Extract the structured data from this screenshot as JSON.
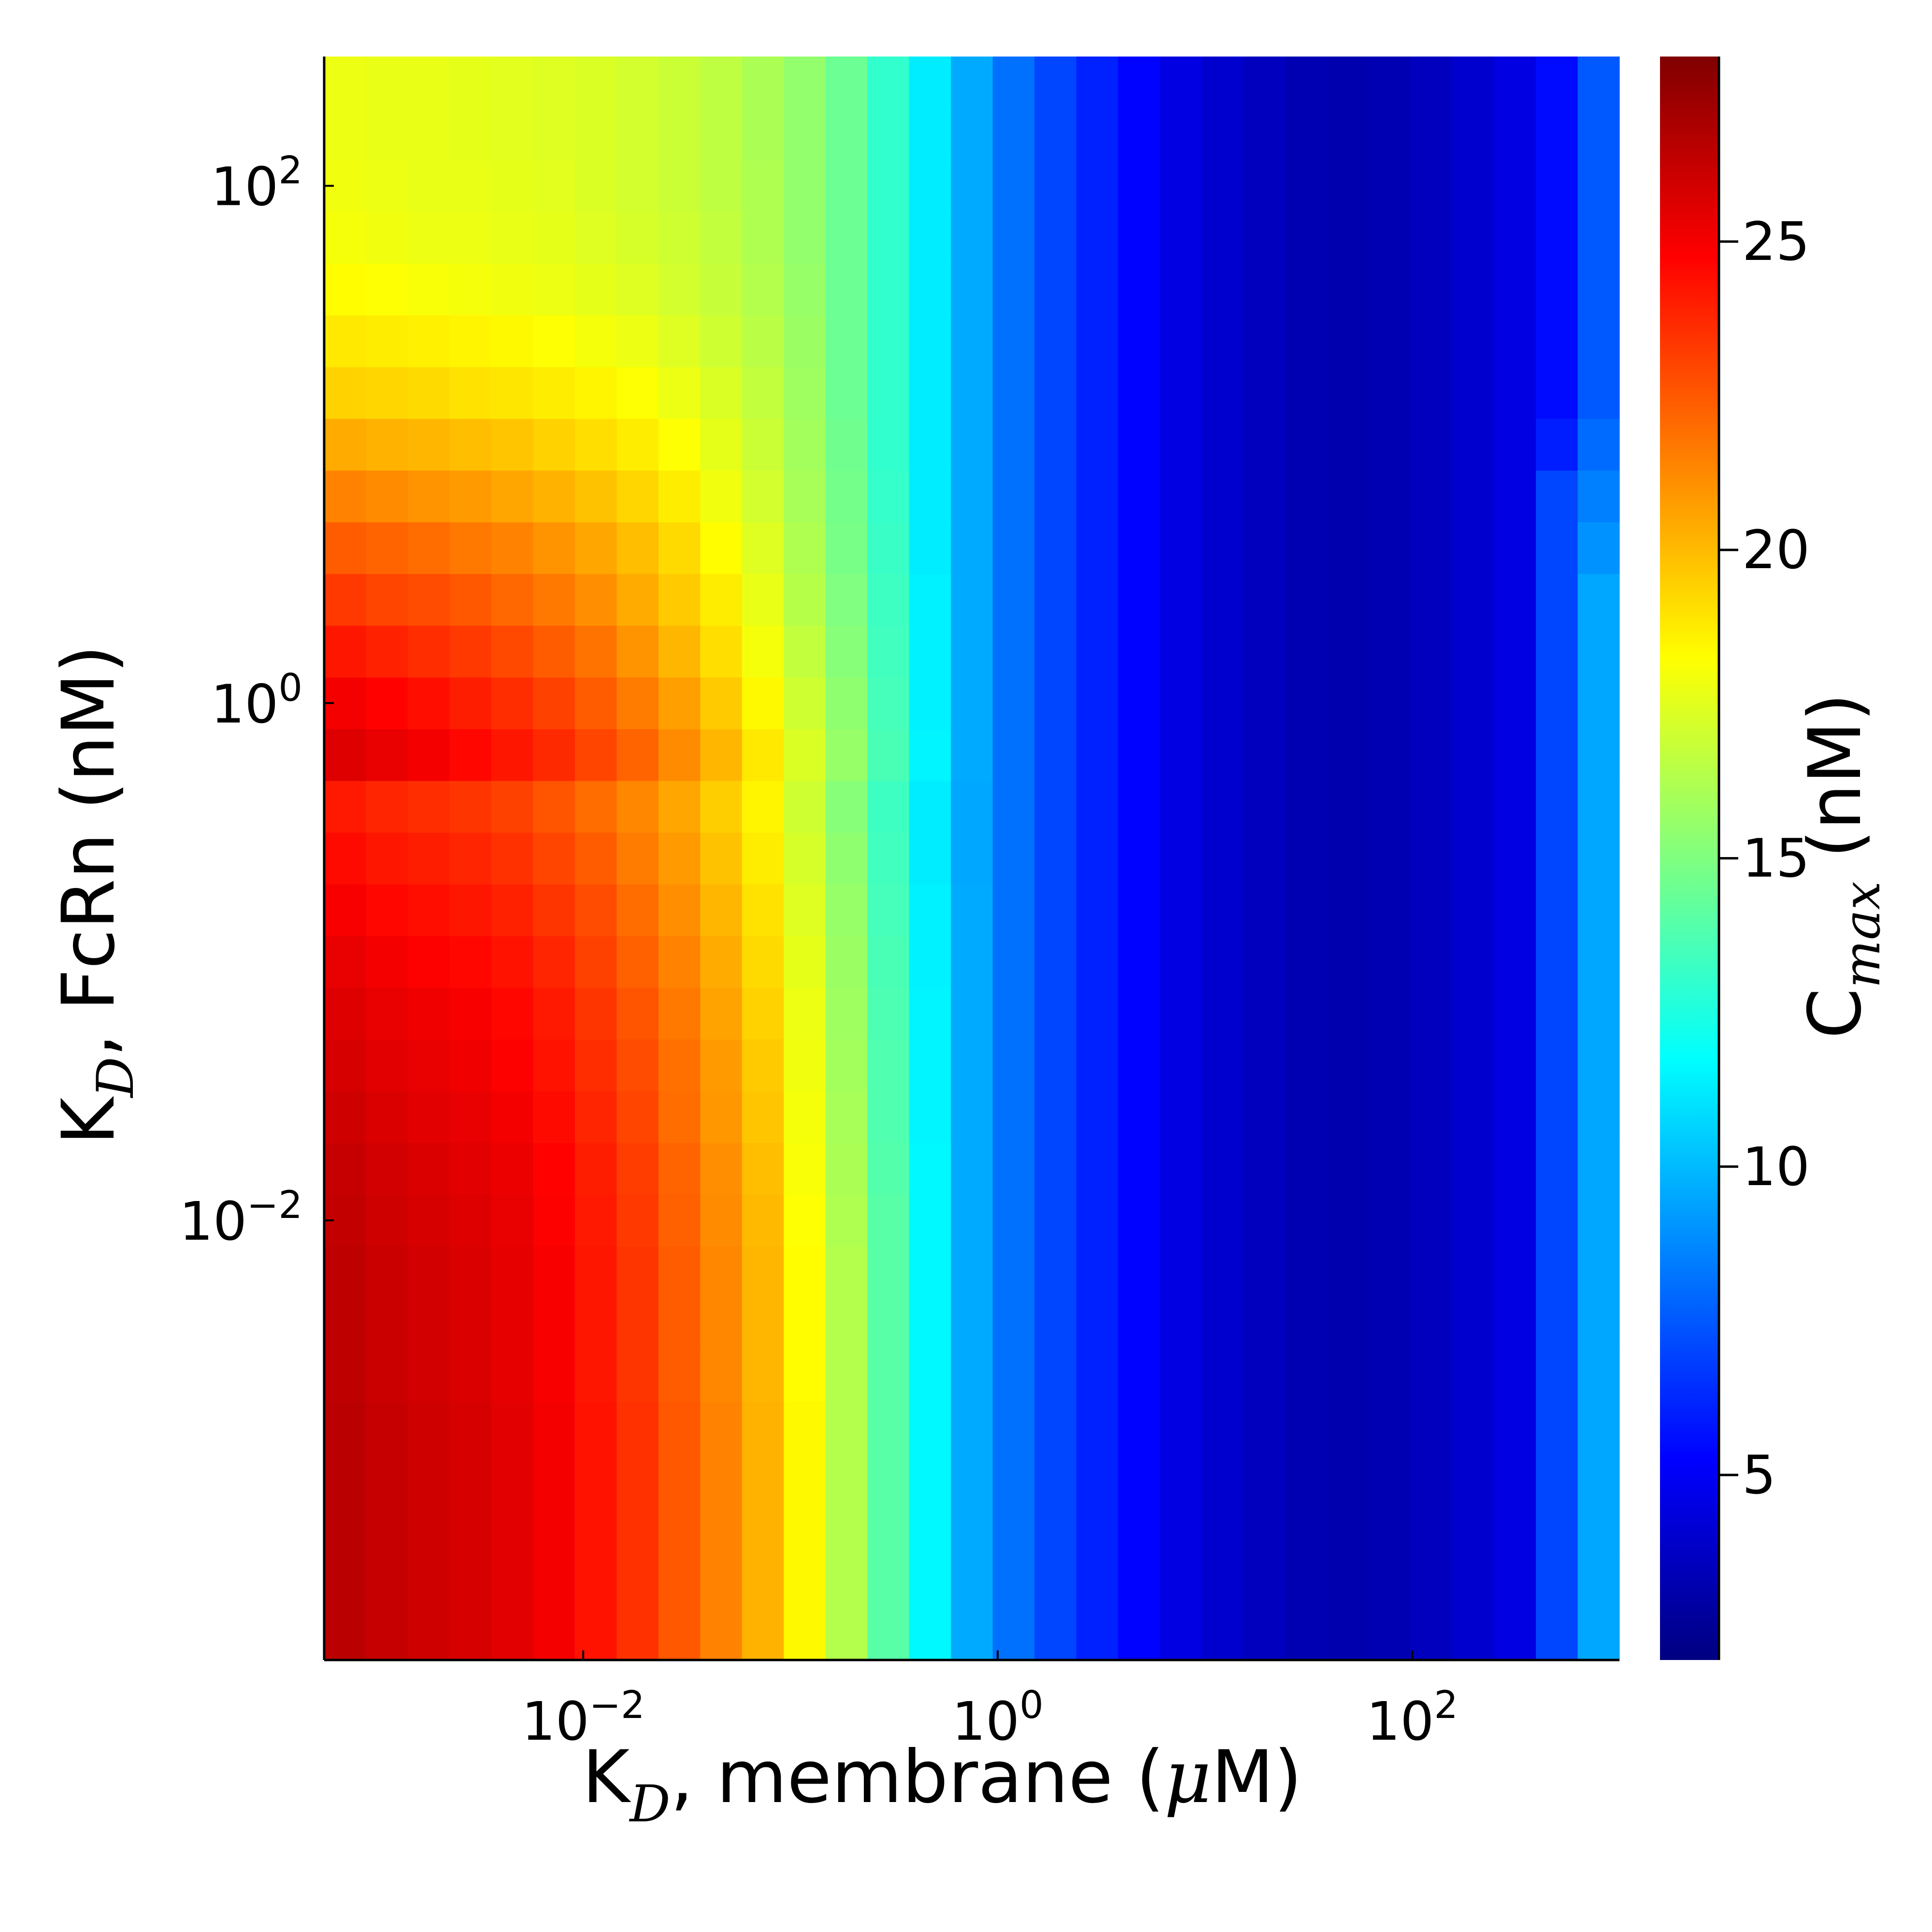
{
  "chart_data": {
    "type": "heatmap",
    "x_axis": {
      "label_main": "K",
      "label_sub": "D",
      "label_rest_pre": ", membrane (",
      "label_greek": "μ",
      "label_rest_post": "M)",
      "scale": "log10",
      "range_log10": [
        -3.25,
        3.0
      ],
      "ticks": [
        {
          "base": "10",
          "exp": "−2",
          "value": 0.01
        },
        {
          "base": "10",
          "exp": "0",
          "value": 1
        },
        {
          "base": "10",
          "exp": "2",
          "value": 100
        }
      ]
    },
    "y_axis": {
      "label_main": "K",
      "label_sub": "D",
      "label_rest": ", FcRn (nM)",
      "scale": "log10",
      "range_log10": [
        -3.7,
        2.5
      ],
      "ticks": [
        {
          "base": "10",
          "exp": "−2",
          "value": 0.01
        },
        {
          "base": "10",
          "exp": "0",
          "value": 1
        },
        {
          "base": "10",
          "exp": "2",
          "value": 100
        }
      ]
    },
    "colorbar": {
      "label_main": "C",
      "label_sub": "max",
      "label_rest": " (nM)",
      "colormap": "jet",
      "range": [
        2,
        28
      ],
      "ticks": [
        {
          "value": 5,
          "label": "5"
        },
        {
          "value": 10,
          "label": "10"
        },
        {
          "value": 15,
          "label": "15"
        },
        {
          "value": 20,
          "label": "20"
        },
        {
          "value": 25,
          "label": "25"
        }
      ]
    },
    "grid": false,
    "nx": 31,
    "ny": 31,
    "row_order": "bottom-to-top",
    "values": [
      [
        26.5,
        26.2,
        26.0,
        25.8,
        25.5,
        25.0,
        24.3,
        23.5,
        22.5,
        21.4,
        20.2,
        18.4,
        16.3,
        14.0,
        11.6,
        9.6,
        8.1,
        7.0,
        6.1,
        5.3,
        4.5,
        4.0,
        3.6,
        3.3,
        3.2,
        3.3,
        3.6,
        4.0,
        4.5,
        7.0,
        9.5
      ],
      [
        26.5,
        26.2,
        26.0,
        25.8,
        25.5,
        25.0,
        24.3,
        23.5,
        22.5,
        21.4,
        20.2,
        18.4,
        16.3,
        14.0,
        11.6,
        9.6,
        8.1,
        7.0,
        6.1,
        5.3,
        4.5,
        4.0,
        3.6,
        3.3,
        3.2,
        3.3,
        3.6,
        4.0,
        4.5,
        7.0,
        9.5
      ],
      [
        26.5,
        26.2,
        26.0,
        25.8,
        25.5,
        25.0,
        24.3,
        23.5,
        22.5,
        21.4,
        20.2,
        18.4,
        16.3,
        14.0,
        11.6,
        9.6,
        8.1,
        7.0,
        6.1,
        5.3,
        4.5,
        4.0,
        3.6,
        3.3,
        3.2,
        3.3,
        3.6,
        4.0,
        4.5,
        7.0,
        9.5
      ],
      [
        26.5,
        26.2,
        26.0,
        25.8,
        25.5,
        25.0,
        24.3,
        23.5,
        22.5,
        21.4,
        20.2,
        18.4,
        16.3,
        14.0,
        11.6,
        9.6,
        8.1,
        7.0,
        6.1,
        5.3,
        4.5,
        4.0,
        3.6,
        3.3,
        3.2,
        3.3,
        3.6,
        4.0,
        4.5,
        7.0,
        9.5
      ],
      [
        26.5,
        26.2,
        26.0,
        25.8,
        25.5,
        25.0,
        24.3,
        23.5,
        22.5,
        21.4,
        20.2,
        18.4,
        16.3,
        14.0,
        11.6,
        9.6,
        8.1,
        7.0,
        6.1,
        5.3,
        4.5,
        4.0,
        3.6,
        3.3,
        3.2,
        3.3,
        3.6,
        4.0,
        4.5,
        7.0,
        9.5
      ],
      [
        26.4,
        26.1,
        25.9,
        25.7,
        25.4,
        24.9,
        24.2,
        23.4,
        22.4,
        21.3,
        20.1,
        18.3,
        16.3,
        14.0,
        11.6,
        9.6,
        8.1,
        7.0,
        6.1,
        5.3,
        4.5,
        4.0,
        3.6,
        3.3,
        3.2,
        3.3,
        3.6,
        4.0,
        4.5,
        7.0,
        9.5
      ],
      [
        26.4,
        26.1,
        25.9,
        25.7,
        25.4,
        24.9,
        24.2,
        23.4,
        22.4,
        21.3,
        20.1,
        18.3,
        16.3,
        14.0,
        11.6,
        9.6,
        8.1,
        7.0,
        6.1,
        5.3,
        4.5,
        4.0,
        3.6,
        3.3,
        3.2,
        3.3,
        3.6,
        4.0,
        4.5,
        7.0,
        9.5
      ],
      [
        26.4,
        26.1,
        25.9,
        25.7,
        25.4,
        24.9,
        24.2,
        23.4,
        22.4,
        21.3,
        20.1,
        18.3,
        16.3,
        14.0,
        11.6,
        9.6,
        8.1,
        7.0,
        6.1,
        5.3,
        4.5,
        4.0,
        3.6,
        3.3,
        3.2,
        3.3,
        3.6,
        4.0,
        4.5,
        7.0,
        9.5
      ],
      [
        26.3,
        26.0,
        25.8,
        25.6,
        25.3,
        24.8,
        24.1,
        23.3,
        22.3,
        21.2,
        20.0,
        18.2,
        16.2,
        14.0,
        11.6,
        9.6,
        8.1,
        7.0,
        6.1,
        5.3,
        4.5,
        4.0,
        3.6,
        3.3,
        3.2,
        3.3,
        3.6,
        4.0,
        4.5,
        7.0,
        9.5
      ],
      [
        26.2,
        25.9,
        25.7,
        25.5,
        25.2,
        24.7,
        24.0,
        23.2,
        22.2,
        21.1,
        19.9,
        18.1,
        16.1,
        13.9,
        11.6,
        9.6,
        8.1,
        7.0,
        6.1,
        5.3,
        4.5,
        4.0,
        3.6,
        3.3,
        3.2,
        3.3,
        3.6,
        4.0,
        4.5,
        7.0,
        9.5
      ],
      [
        26.0,
        25.7,
        25.5,
        25.3,
        25.0,
        24.5,
        23.8,
        23.0,
        22.0,
        20.9,
        19.7,
        18.0,
        16.0,
        13.8,
        11.5,
        9.6,
        8.1,
        7.0,
        6.1,
        5.3,
        4.5,
        4.0,
        3.6,
        3.3,
        3.2,
        3.3,
        3.6,
        4.0,
        4.5,
        7.0,
        9.5
      ],
      [
        25.8,
        25.5,
        25.3,
        25.1,
        24.8,
        24.3,
        23.6,
        22.8,
        21.9,
        20.8,
        19.6,
        17.9,
        15.9,
        13.8,
        11.5,
        9.6,
        8.1,
        7.0,
        6.1,
        5.3,
        4.5,
        4.0,
        3.6,
        3.3,
        3.2,
        3.3,
        3.6,
        4.0,
        4.5,
        7.0,
        9.5
      ],
      [
        25.6,
        25.3,
        25.1,
        24.9,
        24.6,
        24.1,
        23.4,
        22.6,
        21.7,
        20.6,
        19.4,
        17.8,
        15.8,
        13.7,
        11.5,
        9.6,
        8.1,
        7.0,
        6.1,
        5.3,
        4.5,
        4.0,
        3.6,
        3.3,
        3.2,
        3.3,
        3.6,
        4.0,
        4.5,
        7.0,
        9.5
      ],
      [
        25.3,
        25.0,
        24.8,
        24.6,
        24.3,
        23.8,
        23.1,
        22.3,
        21.4,
        20.4,
        19.2,
        17.6,
        15.7,
        13.6,
        11.4,
        9.6,
        8.1,
        7.0,
        6.1,
        5.3,
        4.5,
        4.0,
        3.6,
        3.3,
        3.2,
        3.3,
        3.6,
        4.0,
        4.5,
        7.0,
        9.5
      ],
      [
        24.9,
        24.6,
        24.4,
        24.2,
        23.9,
        23.4,
        22.8,
        22.0,
        21.1,
        20.1,
        19.0,
        17.4,
        15.6,
        13.5,
        11.4,
        9.6,
        8.1,
        7.0,
        6.1,
        5.3,
        4.5,
        4.0,
        3.6,
        3.3,
        3.2,
        3.3,
        3.6,
        4.0,
        4.5,
        7.0,
        9.5
      ],
      [
        24.5,
        24.2,
        24.0,
        23.8,
        23.5,
        23.0,
        22.4,
        21.6,
        20.8,
        19.8,
        18.7,
        17.2,
        15.4,
        13.4,
        11.3,
        9.5,
        8.1,
        7.0,
        6.1,
        5.3,
        4.5,
        4.0,
        3.6,
        3.3,
        3.2,
        3.3,
        3.6,
        4.0,
        4.5,
        7.0,
        9.5
      ],
      [
        24.1,
        23.8,
        23.6,
        23.4,
        23.1,
        22.6,
        22.0,
        21.3,
        20.5,
        19.5,
        18.5,
        17.0,
        15.2,
        13.3,
        11.3,
        9.5,
        8.1,
        7.0,
        6.1,
        5.3,
        4.5,
        4.0,
        3.6,
        3.3,
        3.2,
        3.3,
        3.6,
        4.0,
        4.5,
        7.0,
        9.5
      ],
      [
        25.6,
        25.3,
        25.0,
        24.6,
        24.2,
        23.7,
        23.0,
        22.2,
        21.2,
        20.1,
        18.8,
        17.3,
        15.6,
        13.6,
        11.5,
        9.6,
        8.1,
        7.0,
        6.1,
        5.3,
        4.5,
        4.0,
        3.6,
        3.3,
        3.2,
        3.3,
        3.6,
        4.0,
        4.5,
        7.0,
        9.5
      ],
      [
        25.0,
        24.7,
        24.4,
        24.0,
        23.6,
        23.1,
        22.4,
        21.6,
        20.7,
        19.6,
        18.4,
        17.0,
        15.4,
        13.5,
        11.4,
        9.6,
        8.1,
        7.0,
        6.1,
        5.3,
        4.5,
        4.0,
        3.6,
        3.3,
        3.2,
        3.3,
        3.6,
        4.0,
        4.5,
        7.0,
        9.5
      ],
      [
        24.2,
        23.9,
        23.6,
        23.3,
        22.9,
        22.4,
        21.8,
        21.0,
        20.1,
        19.1,
        18.0,
        16.7,
        15.2,
        13.4,
        11.4,
        9.6,
        8.1,
        7.0,
        6.1,
        5.3,
        4.5,
        4.0,
        3.6,
        3.3,
        3.2,
        3.3,
        3.6,
        4.0,
        4.5,
        7.0,
        9.5
      ],
      [
        23.3,
        23.0,
        22.8,
        22.5,
        22.1,
        21.7,
        21.1,
        20.4,
        19.6,
        18.7,
        17.7,
        16.4,
        15.0,
        13.3,
        11.4,
        9.6,
        8.1,
        7.0,
        6.1,
        5.3,
        4.5,
        4.0,
        3.6,
        3.3,
        3.2,
        3.3,
        3.6,
        4.0,
        4.5,
        7.0,
        9.5
      ],
      [
        22.4,
        22.2,
        22.0,
        21.7,
        21.4,
        21.0,
        20.5,
        19.9,
        19.2,
        18.3,
        17.4,
        16.2,
        14.8,
        13.2,
        11.3,
        9.6,
        8.1,
        7.0,
        6.1,
        5.3,
        4.5,
        4.0,
        3.6,
        3.3,
        3.2,
        3.3,
        3.6,
        4.0,
        4.5,
        7.0,
        9.0
      ],
      [
        21.4,
        21.2,
        21.0,
        20.8,
        20.5,
        20.2,
        19.8,
        19.3,
        18.7,
        17.9,
        17.1,
        16.0,
        14.7,
        13.1,
        11.3,
        9.6,
        8.1,
        7.0,
        6.1,
        5.3,
        4.5,
        4.0,
        3.6,
        3.3,
        3.2,
        3.3,
        3.6,
        4.0,
        4.5,
        7.0,
        8.5
      ],
      [
        20.4,
        20.2,
        20.1,
        19.9,
        19.7,
        19.4,
        19.1,
        18.7,
        18.2,
        17.6,
        16.9,
        15.9,
        14.6,
        13.0,
        11.3,
        9.6,
        8.1,
        7.0,
        6.1,
        5.3,
        4.5,
        4.0,
        3.6,
        3.3,
        3.2,
        3.3,
        3.6,
        4.0,
        4.5,
        6.0,
        8.0
      ],
      [
        19.4,
        19.3,
        19.2,
        19.0,
        18.9,
        18.7,
        18.5,
        18.2,
        17.8,
        17.3,
        16.7,
        15.8,
        14.5,
        13.0,
        11.3,
        9.6,
        8.1,
        7.0,
        6.1,
        5.3,
        4.5,
        4.0,
        3.6,
        3.3,
        3.2,
        3.3,
        3.6,
        4.0,
        4.5,
        5.5,
        7.5
      ],
      [
        18.8,
        18.7,
        18.6,
        18.5,
        18.4,
        18.2,
        18.0,
        17.8,
        17.4,
        17.0,
        16.5,
        15.7,
        14.5,
        13.0,
        11.3,
        9.6,
        8.1,
        7.0,
        6.1,
        5.3,
        4.5,
        4.0,
        3.6,
        3.3,
        3.2,
        3.3,
        3.6,
        4.0,
        4.5,
        5.5,
        7.5
      ],
      [
        18.3,
        18.2,
        18.1,
        18.0,
        17.9,
        17.8,
        17.6,
        17.4,
        17.1,
        16.8,
        16.3,
        15.6,
        14.5,
        13.0,
        11.3,
        9.6,
        8.1,
        7.0,
        6.1,
        5.3,
        4.5,
        4.0,
        3.6,
        3.3,
        3.2,
        3.3,
        3.6,
        4.0,
        4.5,
        5.5,
        7.5
      ],
      [
        18.0,
        17.9,
        17.8,
        17.8,
        17.7,
        17.6,
        17.4,
        17.2,
        17.0,
        16.7,
        16.2,
        15.5,
        14.5,
        13.0,
        11.3,
        9.6,
        8.1,
        7.0,
        6.1,
        5.3,
        4.5,
        4.0,
        3.6,
        3.3,
        3.2,
        3.3,
        3.6,
        4.0,
        4.5,
        5.5,
        7.5
      ],
      [
        17.9,
        17.8,
        17.7,
        17.7,
        17.6,
        17.5,
        17.3,
        17.1,
        16.9,
        16.6,
        16.2,
        15.5,
        14.5,
        13.0,
        11.3,
        9.6,
        8.1,
        7.0,
        6.1,
        5.3,
        4.5,
        4.0,
        3.6,
        3.3,
        3.2,
        3.3,
        3.6,
        4.0,
        4.5,
        5.5,
        7.5
      ],
      [
        17.8,
        17.7,
        17.7,
        17.6,
        17.5,
        17.4,
        17.3,
        17.1,
        16.9,
        16.6,
        16.1,
        15.5,
        14.5,
        13.0,
        11.3,
        9.6,
        8.1,
        7.0,
        6.1,
        5.3,
        4.5,
        4.0,
        3.6,
        3.3,
        3.2,
        3.3,
        3.6,
        4.0,
        4.5,
        5.5,
        7.5
      ],
      [
        17.8,
        17.7,
        17.7,
        17.6,
        17.5,
        17.4,
        17.3,
        17.1,
        16.9,
        16.6,
        16.1,
        15.5,
        14.5,
        13.0,
        11.3,
        9.6,
        8.1,
        7.0,
        6.1,
        5.3,
        4.5,
        4.0,
        3.6,
        3.3,
        3.2,
        3.3,
        3.6,
        4.0,
        4.5,
        5.5,
        7.5
      ]
    ]
  }
}
